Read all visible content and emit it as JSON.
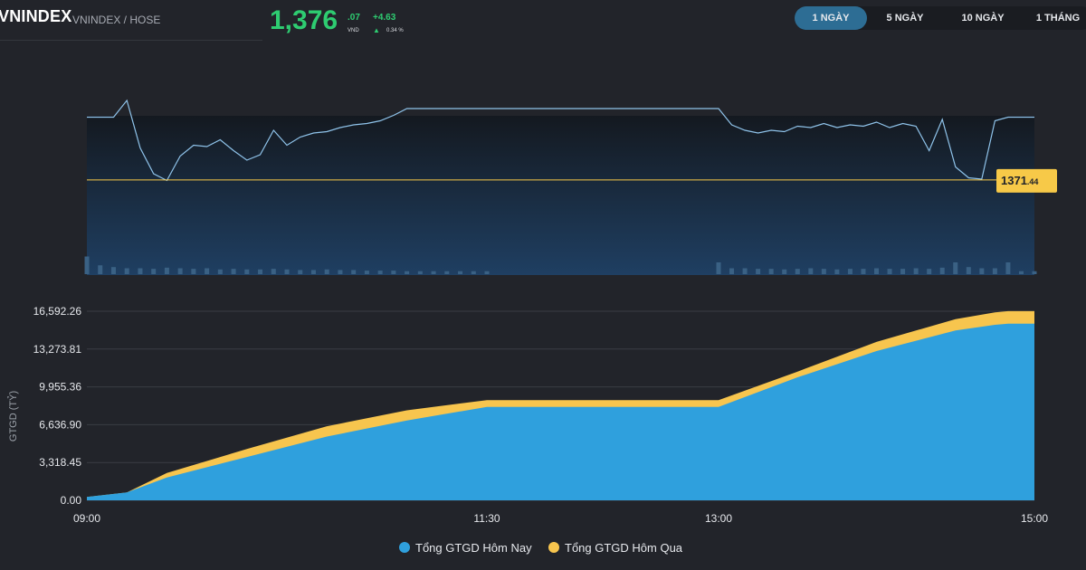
{
  "header": {
    "ticker": "VNINDEX",
    "exchange": "VNINDEX / HOSE",
    "price_main": "1,376",
    "price_decimal": ".07",
    "currency": "VND",
    "change_abs": "+4.63",
    "change_pct": "0.34 %",
    "up_color": "#2ecc71"
  },
  "range_tabs": [
    {
      "label": "1 NGÀY",
      "active": true
    },
    {
      "label": "5 NGÀY",
      "active": false
    },
    {
      "label": "10 NGÀY",
      "active": false
    },
    {
      "label": "1 THÁNG",
      "active": false
    }
  ],
  "reference": {
    "label_int": "1371",
    "label_dec": ".44",
    "color": "#f7c948"
  },
  "chart_data": [
    {
      "type": "line",
      "description_label": "VNINDEX intraday",
      "x": [
        "09:00",
        "09:05",
        "09:10",
        "09:15",
        "09:20",
        "09:25",
        "09:30",
        "09:35",
        "09:40",
        "09:45",
        "09:50",
        "09:55",
        "10:00",
        "10:05",
        "10:10",
        "10:15",
        "10:20",
        "10:25",
        "10:30",
        "10:35",
        "10:40",
        "10:45",
        "10:50",
        "10:55",
        "11:00",
        "11:05",
        "11:10",
        "11:15",
        "11:20",
        "11:25",
        "11:30",
        "13:00",
        "13:05",
        "13:10",
        "13:15",
        "13:20",
        "13:25",
        "13:30",
        "13:35",
        "13:40",
        "13:45",
        "13:50",
        "13:55",
        "14:00",
        "14:05",
        "14:10",
        "14:15",
        "14:20",
        "14:25",
        "14:30",
        "14:35",
        "14:40",
        "14:45",
        "14:50",
        "14:55",
        "15:00"
      ],
      "y": [
        1376.07,
        1376.07,
        1376.07,
        1377.3,
        1373.8,
        1371.9,
        1371.4,
        1373.2,
        1374.0,
        1373.9,
        1374.4,
        1373.6,
        1372.9,
        1373.3,
        1375.1,
        1374.0,
        1374.6,
        1374.9,
        1375.0,
        1375.3,
        1375.5,
        1375.6,
        1375.8,
        1376.2,
        1376.7,
        1376.7,
        1376.7,
        1376.7,
        1376.7,
        1376.7,
        1376.7,
        1376.7,
        1375.5,
        1375.1,
        1374.9,
        1375.1,
        1375.0,
        1375.4,
        1375.3,
        1375.6,
        1375.3,
        1375.5,
        1375.4,
        1375.7,
        1375.3,
        1375.6,
        1375.4,
        1373.6,
        1375.9,
        1372.4,
        1371.6,
        1371.5,
        1375.8,
        1376.07,
        1376.07,
        1376.07
      ],
      "volume_relative": [
        0.3,
        0.15,
        0.12,
        0.1,
        0.1,
        0.09,
        0.11,
        0.1,
        0.09,
        0.1,
        0.08,
        0.09,
        0.08,
        0.08,
        0.09,
        0.08,
        0.07,
        0.07,
        0.08,
        0.07,
        0.07,
        0.06,
        0.06,
        0.06,
        0.05,
        0.05,
        0.05,
        0.05,
        0.05,
        0.05,
        0.05,
        0.2,
        0.1,
        0.1,
        0.09,
        0.09,
        0.08,
        0.09,
        0.1,
        0.09,
        0.08,
        0.09,
        0.09,
        0.1,
        0.09,
        0.09,
        0.1,
        0.09,
        0.11,
        0.2,
        0.12,
        0.1,
        0.1,
        0.2,
        0.05,
        0.05
      ],
      "reference_value": 1371.44,
      "ylim": [
        1369.5,
        1377.5
      ],
      "line_color": "#8fc3ea"
    },
    {
      "type": "area",
      "ylabel": "GTGD (TỶ)",
      "x_ticks": [
        "09:00",
        "11:30",
        "13:00",
        "15:00"
      ],
      "y_ticks": [
        "0.00",
        "3,318.45",
        "6,636.90",
        "9,955.36",
        "13,273.81",
        "16,592.26"
      ],
      "ylim": [
        0,
        16592.26
      ],
      "grid": true,
      "legend_position": "bottom",
      "series": [
        {
          "name": "Tổng GTGD Hôm Nay",
          "color": "#2fa0dd",
          "x": [
            "09:00",
            "09:15",
            "09:30",
            "10:00",
            "10:30",
            "11:00",
            "11:30",
            "13:00",
            "13:30",
            "14:00",
            "14:30",
            "14:45",
            "14:50",
            "15:00"
          ],
          "values": [
            300,
            700,
            2000,
            3800,
            5600,
            7000,
            8200,
            8200,
            10800,
            13100,
            14900,
            15400,
            15500,
            15500
          ]
        },
        {
          "name": "Tổng GTGD Hôm Qua",
          "color": "#f7c54e",
          "x": [
            "09:00",
            "09:15",
            "09:30",
            "10:00",
            "10:30",
            "11:00",
            "11:30",
            "13:00",
            "13:30",
            "14:00",
            "14:30",
            "14:45",
            "14:50",
            "15:00"
          ],
          "values": [
            300,
            700,
            2400,
            4500,
            6500,
            7900,
            8800,
            8800,
            11300,
            13900,
            15900,
            16500,
            16600,
            16600
          ]
        }
      ]
    }
  ]
}
